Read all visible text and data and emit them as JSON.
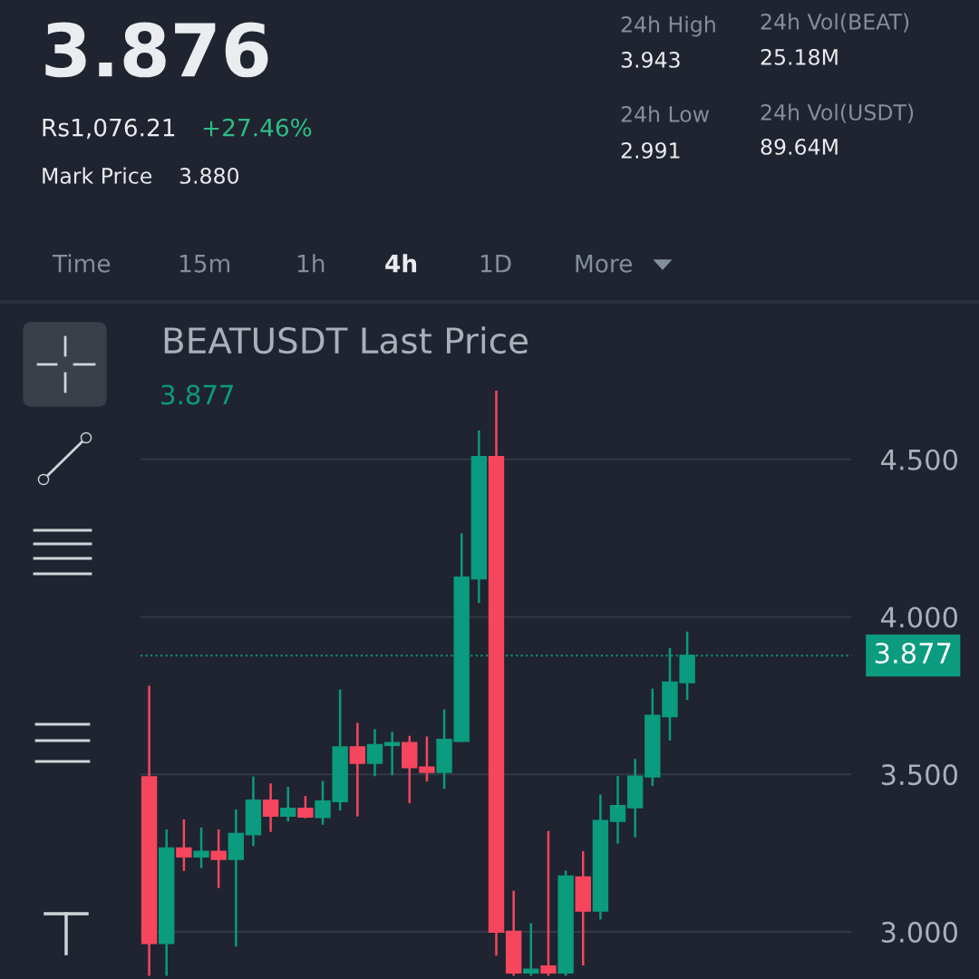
{
  "chart_data": {
    "type": "candlestick",
    "title": "BEATUSDT Last Price",
    "categories": [
      null,
      null,
      null,
      null,
      null,
      null,
      null,
      null,
      null,
      null,
      null,
      null,
      null,
      null,
      null,
      null,
      null,
      null,
      null,
      null,
      null,
      null,
      null,
      null,
      null,
      null,
      null,
      null,
      null,
      null,
      null,
      null,
      null,
      null,
      null,
      null,
      null,
      null,
      null,
      null,
      null
    ],
    "ohlc": [
      [
        3.491,
        3.781,
        2.86,
        2.964
      ],
      [
        2.964,
        3.325,
        2.86,
        3.265
      ],
      [
        3.265,
        3.357,
        3.193,
        3.239
      ],
      [
        3.239,
        3.331,
        3.202,
        3.254
      ],
      [
        3.254,
        3.325,
        3.139,
        3.231
      ],
      [
        3.231,
        3.388,
        2.953,
        3.311
      ],
      [
        3.309,
        3.493,
        3.272,
        3.417
      ],
      [
        3.417,
        3.471,
        3.317,
        3.368
      ],
      [
        3.368,
        3.46,
        3.35,
        3.391
      ],
      [
        3.391,
        3.431,
        3.36,
        3.365
      ],
      [
        3.364,
        3.479,
        3.34,
        3.414
      ],
      [
        3.414,
        3.769,
        3.385,
        3.586
      ],
      [
        3.586,
        3.663,
        3.366,
        3.536
      ],
      [
        3.536,
        3.643,
        3.494,
        3.593
      ],
      [
        3.593,
        3.635,
        3.497,
        3.6
      ],
      [
        3.6,
        3.622,
        3.408,
        3.522
      ],
      [
        3.522,
        3.62,
        3.477,
        3.507
      ],
      [
        3.507,
        3.706,
        3.454,
        3.61
      ],
      [
        3.606,
        4.265,
        3.603,
        4.125
      ],
      [
        4.122,
        4.592,
        4.044,
        4.508
      ],
      [
        4.508,
        4.718,
        2.924,
        3.0
      ],
      [
        3.0,
        3.13,
        2.86,
        2.87
      ],
      [
        2.87,
        3.027,
        2.86,
        2.88
      ],
      [
        2.89,
        3.32,
        2.86,
        2.87
      ],
      [
        2.87,
        3.194,
        2.86,
        3.176
      ],
      [
        3.173,
        3.256,
        2.893,
        3.067
      ],
      [
        3.067,
        3.436,
        3.039,
        3.352
      ],
      [
        3.352,
        3.495,
        3.28,
        3.4
      ],
      [
        3.395,
        3.549,
        3.3,
        3.493
      ],
      [
        3.493,
        3.772,
        3.463,
        3.686
      ],
      [
        3.684,
        3.901,
        3.607,
        3.792
      ],
      [
        3.792,
        3.953,
        3.736,
        3.877
      ],
      null,
      null,
      null,
      null,
      null,
      null,
      null,
      null,
      null
    ],
    "colors": [
      "#f6465d",
      "#0b9b7e",
      "#f6465d",
      "#0b9b7e",
      "#f6465d",
      "#0b9b7e",
      "#0b9b7e",
      "#f6465d",
      "#0b9b7e",
      "#f6465d",
      "#0b9b7e",
      "#0b9b7e",
      "#f6465d",
      "#0b9b7e",
      "#0b9b7e",
      "#f6465d",
      "#f6465d",
      "#0b9b7e",
      "#0b9b7e",
      "#0b9b7e",
      "#f6465d",
      "#f6465d",
      "#0b9b7e",
      "#f6465d",
      "#0b9b7e",
      "#f6465d",
      "#0b9b7e",
      "#0b9b7e",
      "#0b9b7e",
      "#0b9b7e",
      "#0b9b7e",
      "#0b9b7e",
      null,
      null,
      null,
      null,
      null,
      null,
      null,
      null,
      null
    ],
    "ylim": [
      2.85,
      4.98
    ],
    "yticks": [
      {
        "value": 3,
        "label": "3.000"
      },
      {
        "value": 3.5,
        "label": "3.500"
      },
      {
        "value": 4,
        "label": "4.000"
      },
      {
        "value": 4.5,
        "label": "4.500"
      }
    ],
    "tick_labels": "y",
    "grid": "y",
    "ref_lines": [
      {
        "axis": "y",
        "value": 3.877,
        "label": "3.877",
        "color": "#0b9b7e",
        "line_style": "dotted"
      }
    ],
    "annotations": [
      "3.876",
      "Rs1,076.21",
      "+27.46%",
      "Mark Price",
      "3.880",
      "24h High",
      "3.943",
      "24h Low",
      "2.991",
      "24h Vol(BEAT)",
      "25.18M",
      "24h Vol(USDT)",
      "89.64M",
      "Time",
      "15m",
      "1h",
      "4h",
      "1D",
      "More",
      "3.877"
    ]
  }
}
